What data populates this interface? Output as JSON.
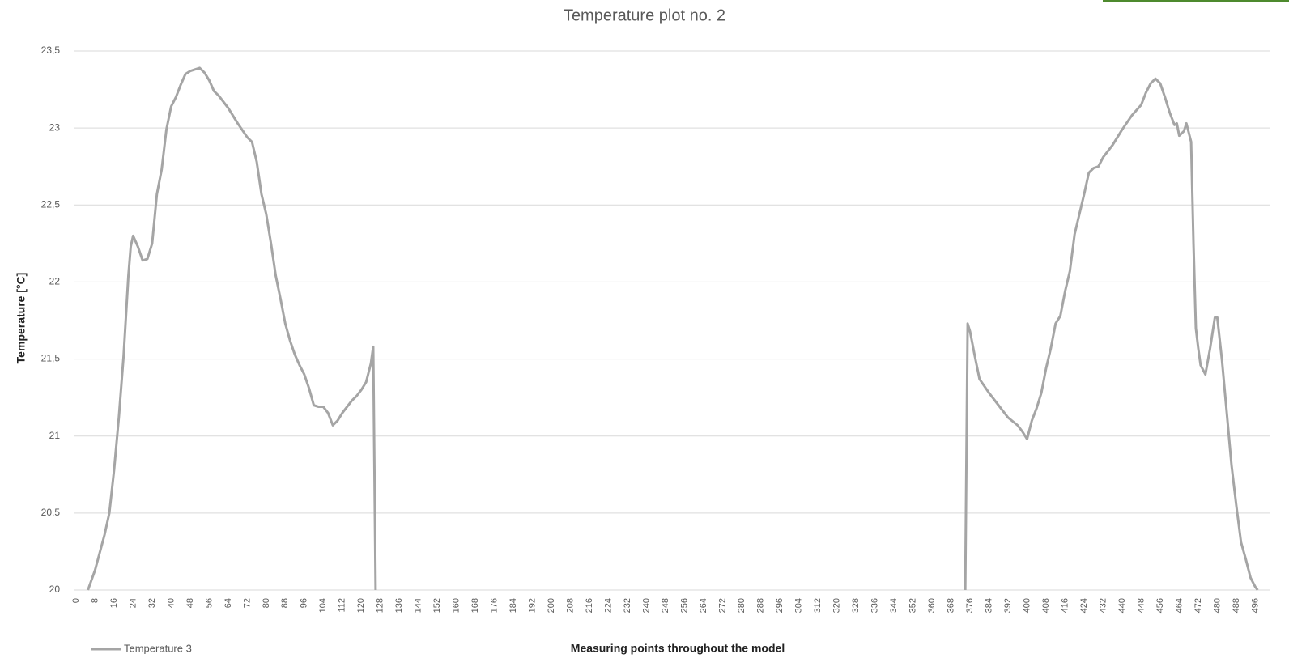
{
  "chart_data": {
    "type": "line",
    "title": "Temperature plot no. 2",
    "x_label": "Measuring points throughout the model",
    "y_label": "Temperature [°C]",
    "x": [
      5,
      8,
      12,
      14,
      16,
      18,
      20,
      22,
      23,
      24,
      26,
      28,
      30,
      32,
      34,
      36,
      38,
      40,
      42,
      44,
      46,
      48,
      50,
      52,
      54,
      56,
      58,
      60,
      64,
      68,
      72,
      74,
      76,
      78,
      80,
      82,
      84,
      86,
      88,
      90,
      92,
      94,
      96,
      98,
      100,
      102,
      104,
      106,
      108,
      110,
      112,
      114,
      116,
      118,
      120,
      122,
      124,
      125,
      126,
      250,
      374,
      375,
      376,
      378,
      380,
      384,
      388,
      392,
      396,
      398,
      400,
      402,
      404,
      406,
      408,
      410,
      412,
      414,
      416,
      418,
      420,
      422,
      424,
      426,
      428,
      430,
      432,
      436,
      440,
      444,
      448,
      450,
      452,
      454,
      456,
      458,
      460,
      462,
      463,
      464,
      466,
      467,
      469,
      470,
      471,
      472,
      473,
      475,
      477,
      479,
      480,
      482,
      484,
      486,
      488,
      490,
      492,
      494,
      496,
      497
    ],
    "series": [
      {
        "name": "Temperature 3",
        "color": "#a5a5a5",
        "values": [
          20,
          20.13,
          20.36,
          20.5,
          20.78,
          21.12,
          21.52,
          22.04,
          22.23,
          22.3,
          22.23,
          22.14,
          22.15,
          22.25,
          22.57,
          22.73,
          22.99,
          23.14,
          23.2,
          23.28,
          23.35,
          23.37,
          23.38,
          23.39,
          23.36,
          23.31,
          23.24,
          23.21,
          23.13,
          23.03,
          22.94,
          22.91,
          22.78,
          22.57,
          22.44,
          22.25,
          22.04,
          21.89,
          21.73,
          21.62,
          21.53,
          21.46,
          21.4,
          21.31,
          21.2,
          21.19,
          21.19,
          21.15,
          21.07,
          21.1,
          21.15,
          21.19,
          21.23,
          21.26,
          21.3,
          21.35,
          21.47,
          21.58,
          20,
          null,
          20,
          21.73,
          21.68,
          21.52,
          21.37,
          21.28,
          21.2,
          21.12,
          21.07,
          21.03,
          20.98,
          21.1,
          21.18,
          21.28,
          21.44,
          21.57,
          21.73,
          21.78,
          21.94,
          22.07,
          22.31,
          22.44,
          22.57,
          22.71,
          22.74,
          22.75,
          22.81,
          22.89,
          22.99,
          23.08,
          23.15,
          23.23,
          23.29,
          23.32,
          23.29,
          23.2,
          23.1,
          23.02,
          23.03,
          22.95,
          22.98,
          23.03,
          22.91,
          22.25,
          21.7,
          21.57,
          21.46,
          21.4,
          21.57,
          21.77,
          21.77,
          21.49,
          21.15,
          20.81,
          20.55,
          20.31,
          20.2,
          20.08,
          20.02,
          20
        ]
      }
    ],
    "xlim": [
      -1,
      502
    ],
    "xticks": [
      0,
      8,
      16,
      24,
      32,
      40,
      48,
      56,
      64,
      72,
      80,
      88,
      96,
      104,
      112,
      120,
      128,
      136,
      144,
      152,
      160,
      168,
      176,
      184,
      192,
      200,
      208,
      216,
      224,
      232,
      240,
      248,
      256,
      264,
      272,
      280,
      288,
      296,
      304,
      312,
      320,
      328,
      336,
      344,
      352,
      360,
      368,
      376,
      384,
      392,
      400,
      408,
      416,
      424,
      432,
      440,
      448,
      456,
      464,
      472,
      480,
      488,
      496
    ],
    "ylim": [
      20,
      23.5
    ],
    "yticks": [
      20,
      {
        "value": 20.5,
        "label": "20,5"
      },
      21,
      {
        "value": 21.5,
        "label": "21,5"
      },
      22,
      {
        "value": 22.5,
        "label": "22,5"
      },
      23,
      {
        "value": 23.5,
        "label": "23,5"
      }
    ],
    "grid": true,
    "legend": "bottom-left"
  }
}
